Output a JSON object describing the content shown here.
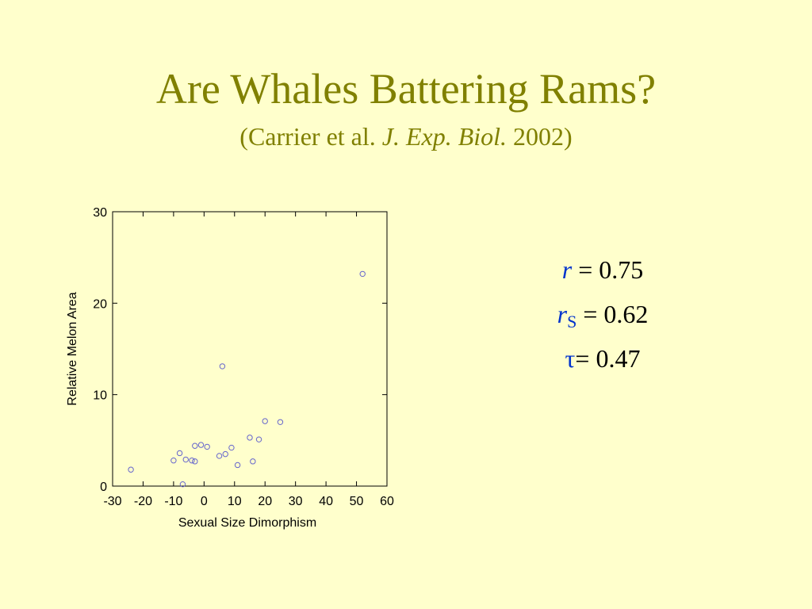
{
  "slide": {
    "title": "Are Whales Battering Rams?",
    "subtitle": {
      "prefix": "(Carrier et al. ",
      "journal": "J. Exp. Biol.",
      "suffix": " 2002)"
    }
  },
  "stats": {
    "pearson": {
      "symbol": "r",
      "sub": "",
      "text": " = 0.75"
    },
    "spearman": {
      "symbol": "r",
      "sub": "S",
      "text": " = 0.62"
    },
    "kendall": {
      "symbol": "τ",
      "sub": "",
      "text": "= 0.47"
    }
  },
  "colors": {
    "background": "#ffffcc",
    "title": "#808000",
    "symbol": "#0033cc",
    "marker": "#6666cc"
  },
  "chart_data": {
    "type": "scatter",
    "xlabel": "Sexual Size Dimorphism",
    "ylabel": "Relative Melon Area",
    "xlim": [
      -30,
      60
    ],
    "ylim": [
      0,
      30
    ],
    "xticks": [
      -30,
      -20,
      -10,
      0,
      10,
      20,
      30,
      40,
      50,
      60
    ],
    "yticks": [
      0,
      10,
      20,
      30
    ],
    "grid": false,
    "marker": "open-circle",
    "points": [
      [
        -24,
        1.8
      ],
      [
        -10,
        2.8
      ],
      [
        -8,
        3.6
      ],
      [
        -7,
        0.2
      ],
      [
        -6,
        2.9
      ],
      [
        -4,
        2.8
      ],
      [
        -3,
        2.7
      ],
      [
        -3,
        4.4
      ],
      [
        -1,
        4.5
      ],
      [
        1,
        4.3
      ],
      [
        5,
        3.3
      ],
      [
        6,
        13.1
      ],
      [
        7,
        3.5
      ],
      [
        9,
        4.2
      ],
      [
        11,
        2.3
      ],
      [
        15,
        5.3
      ],
      [
        16,
        2.7
      ],
      [
        18,
        5.1
      ],
      [
        20,
        7.1
      ],
      [
        25,
        7.0
      ],
      [
        52,
        23.2
      ]
    ]
  }
}
